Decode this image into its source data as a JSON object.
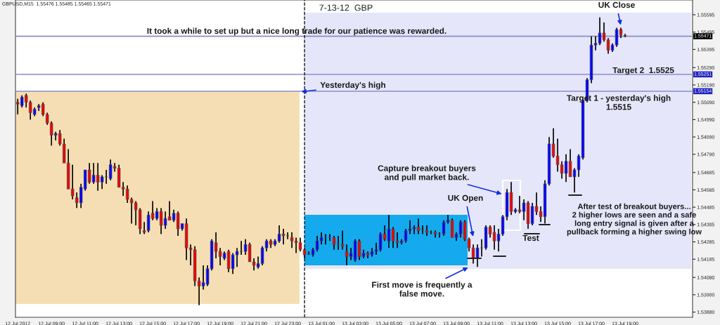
{
  "chart_data": {
    "type": "candlestick",
    "title": "7-13-12  GBP",
    "x": [
      "2012-07-12T07:00",
      "2012-07-12T07:15",
      "2012-07-12T07:30",
      "2012-07-12T07:45",
      "2012-07-12T08:00",
      "2012-07-12T08:15",
      "2012-07-12T08:30",
      "2012-07-12T08:45",
      "2012-07-12T09:00",
      "2012-07-12T09:15",
      "2012-07-12T09:30",
      "2012-07-12T09:45",
      "2012-07-12T10:00",
      "2012-07-12T10:15",
      "2012-07-12T10:30",
      "2012-07-12T10:45",
      "2012-07-12T11:00",
      "2012-07-12T11:15",
      "2012-07-12T11:30",
      "2012-07-12T11:45",
      "2012-07-12T12:00",
      "2012-07-12T12:15",
      "2012-07-12T12:30",
      "2012-07-12T12:45",
      "2012-07-12T13:00",
      "2012-07-12T13:15",
      "2012-07-12T13:30",
      "2012-07-12T13:45",
      "2012-07-12T14:00",
      "2012-07-12T14:15",
      "2012-07-12T14:30",
      "2012-07-12T14:45",
      "2012-07-12T15:00",
      "2012-07-12T15:15",
      "2012-07-12T15:30",
      "2012-07-12T15:45",
      "2012-07-12T16:00",
      "2012-07-12T16:15",
      "2012-07-12T16:30",
      "2012-07-12T16:45",
      "2012-07-12T17:00",
      "2012-07-12T17:15",
      "2012-07-12T17:30",
      "2012-07-12T17:45",
      "2012-07-12T18:00",
      "2012-07-12T18:15",
      "2012-07-12T18:30",
      "2012-07-12T18:45",
      "2012-07-12T19:00",
      "2012-07-12T19:15",
      "2012-07-12T19:30",
      "2012-07-12T19:45",
      "2012-07-12T20:00",
      "2012-07-12T20:15",
      "2012-07-12T20:30",
      "2012-07-12T20:45",
      "2012-07-12T21:00",
      "2012-07-12T21:15",
      "2012-07-12T21:30",
      "2012-07-12T21:45",
      "2012-07-12T22:00",
      "2012-07-12T22:15",
      "2012-07-12T22:30",
      "2012-07-12T22:45",
      "2012-07-12T23:00",
      "2012-07-12T23:15",
      "2012-07-12T23:30",
      "2012-07-12T23:45",
      "2012-07-13T00:00",
      "2012-07-13T00:15",
      "2012-07-13T00:30",
      "2012-07-13T00:45",
      "2012-07-13T01:00",
      "2012-07-13T01:15",
      "2012-07-13T01:30",
      "2012-07-13T01:45",
      "2012-07-13T02:00",
      "2012-07-13T02:15",
      "2012-07-13T02:30",
      "2012-07-13T02:45",
      "2012-07-13T03:00",
      "2012-07-13T03:15",
      "2012-07-13T03:30",
      "2012-07-13T03:45",
      "2012-07-13T04:00",
      "2012-07-13T04:15",
      "2012-07-13T04:30",
      "2012-07-13T04:45",
      "2012-07-13T05:00",
      "2012-07-13T05:15",
      "2012-07-13T05:30",
      "2012-07-13T05:45",
      "2012-07-13T06:00",
      "2012-07-13T06:15",
      "2012-07-13T06:30",
      "2012-07-13T06:45",
      "2012-07-13T07:00",
      "2012-07-13T07:15",
      "2012-07-13T07:30",
      "2012-07-13T07:45",
      "2012-07-13T08:00",
      "2012-07-13T08:15",
      "2012-07-13T08:30",
      "2012-07-13T08:45",
      "2012-07-13T09:00",
      "2012-07-13T09:15",
      "2012-07-13T09:30",
      "2012-07-13T09:45",
      "2012-07-13T10:00",
      "2012-07-13T10:15",
      "2012-07-13T10:30",
      "2012-07-13T10:45",
      "2012-07-13T11:00",
      "2012-07-13T11:15",
      "2012-07-13T11:30",
      "2012-07-13T11:45",
      "2012-07-13T12:00",
      "2012-07-13T12:15",
      "2012-07-13T12:30",
      "2012-07-13T12:45",
      "2012-07-13T13:00",
      "2012-07-13T13:15",
      "2012-07-13T13:30",
      "2012-07-13T13:45",
      "2012-07-13T14:00",
      "2012-07-13T14:15",
      "2012-07-13T14:30",
      "2012-07-13T14:45",
      "2012-07-13T15:00",
      "2012-07-13T15:15",
      "2012-07-13T15:30",
      "2012-07-13T15:45",
      "2012-07-13T16:00",
      "2012-07-13T16:15",
      "2012-07-13T16:30",
      "2012-07-13T16:45",
      "2012-07-13T17:00",
      "2012-07-13T17:15",
      "2012-07-13T17:30",
      "2012-07-13T17:45",
      "2012-07-13T18:00",
      "2012-07-13T18:15",
      "2012-07-13T18:30",
      "2012-07-13T18:45",
      "2012-07-13T19:00"
    ],
    "ohlc": [
      [
        1.5509,
        1.5511,
        1.5502,
        1.5508
      ],
      [
        1.5507,
        1.5513,
        1.5506,
        1.5512
      ],
      [
        1.5513,
        1.5514,
        1.5506,
        1.5509
      ],
      [
        1.5509,
        1.551,
        1.5499,
        1.5503
      ],
      [
        1.5502,
        1.5506,
        1.5501,
        1.5505
      ],
      [
        1.5506,
        1.5508,
        1.5504,
        1.5507
      ],
      [
        1.5508,
        1.5509,
        1.5501,
        1.5502
      ],
      [
        1.5502,
        1.5503,
        1.5496,
        1.5497
      ],
      [
        1.5497,
        1.5498,
        1.5484,
        1.549
      ],
      [
        1.549,
        1.5492,
        1.5487,
        1.5491
      ],
      [
        1.5491,
        1.5493,
        1.5484,
        1.5485
      ],
      [
        1.5485,
        1.5488,
        1.5474,
        1.5474
      ],
      [
        1.5474,
        1.5482,
        1.5459,
        1.5459
      ],
      [
        1.5459,
        1.5473,
        1.5453,
        1.5455
      ],
      [
        1.5454,
        1.5457,
        1.5448,
        1.5451
      ],
      [
        1.5451,
        1.5462,
        1.5448,
        1.546
      ],
      [
        1.5459,
        1.547,
        1.5458,
        1.547
      ],
      [
        1.547,
        1.5474,
        1.5462,
        1.5463
      ],
      [
        1.5463,
        1.5474,
        1.5462,
        1.5467
      ],
      [
        1.5467,
        1.5474,
        1.5458,
        1.5463
      ],
      [
        1.5463,
        1.5467,
        1.5459,
        1.5466
      ],
      [
        1.5466,
        1.547,
        1.5462,
        1.5466
      ],
      [
        1.5465,
        1.5476,
        1.5464,
        1.5473
      ],
      [
        1.5472,
        1.5474,
        1.5469,
        1.5471
      ],
      [
        1.5471,
        1.5473,
        1.546,
        1.546
      ],
      [
        1.546,
        1.5463,
        1.5455,
        1.5459
      ],
      [
        1.5459,
        1.5461,
        1.5451,
        1.5453
      ],
      [
        1.5453,
        1.5454,
        1.5439,
        1.5451
      ],
      [
        1.5451,
        1.5452,
        1.5438,
        1.5447
      ],
      [
        1.5447,
        1.5448,
        1.5433,
        1.5436
      ],
      [
        1.5435,
        1.544,
        1.5433,
        1.5434
      ],
      [
        1.5435,
        1.5446,
        1.5434,
        1.5444
      ],
      [
        1.5445,
        1.5452,
        1.5441,
        1.5442
      ],
      [
        1.5442,
        1.5448,
        1.5441,
        1.5446
      ],
      [
        1.5446,
        1.5448,
        1.5433,
        1.5438
      ],
      [
        1.5438,
        1.5446,
        1.5436,
        1.5442
      ],
      [
        1.5443,
        1.5452,
        1.5441,
        1.5441
      ],
      [
        1.5441,
        1.5447,
        1.544,
        1.5445
      ],
      [
        1.5445,
        1.5446,
        1.5432,
        1.5436
      ],
      [
        1.5436,
        1.5439,
        1.5435,
        1.5439
      ],
      [
        1.5439,
        1.5442,
        1.5418,
        1.5425
      ],
      [
        1.5425,
        1.5427,
        1.5415,
        1.5424
      ],
      [
        1.5424,
        1.5426,
        1.5403,
        1.5406
      ],
      [
        1.5406,
        1.5408,
        1.5392,
        1.5403
      ],
      [
        1.5403,
        1.5415,
        1.5401,
        1.5405
      ],
      [
        1.5404,
        1.5415,
        1.5403,
        1.5413
      ],
      [
        1.5413,
        1.543,
        1.5412,
        1.5429
      ],
      [
        1.5428,
        1.5434,
        1.5419,
        1.5423
      ],
      [
        1.5423,
        1.5425,
        1.5415,
        1.542
      ],
      [
        1.5419,
        1.5423,
        1.5418,
        1.5422
      ],
      [
        1.5423,
        1.5424,
        1.5411,
        1.5413
      ],
      [
        1.5413,
        1.5422,
        1.541,
        1.5421
      ],
      [
        1.5421,
        1.5425,
        1.5414,
        1.5423
      ],
      [
        1.5423,
        1.5429,
        1.5421,
        1.5423
      ],
      [
        1.5423,
        1.543,
        1.5421,
        1.5427
      ],
      [
        1.5427,
        1.5428,
        1.5417,
        1.5417
      ],
      [
        1.5417,
        1.5419,
        1.5412,
        1.5415
      ],
      [
        1.5414,
        1.542,
        1.5413,
        1.5416
      ],
      [
        1.5416,
        1.5426,
        1.5415,
        1.5425
      ],
      [
        1.5425,
        1.543,
        1.5423,
        1.5429
      ],
      [
        1.5429,
        1.543,
        1.5425,
        1.5427
      ],
      [
        1.5427,
        1.543,
        1.5426,
        1.5429
      ],
      [
        1.5429,
        1.5438,
        1.5428,
        1.5433
      ],
      [
        1.5433,
        1.5436,
        1.5427,
        1.5432
      ],
      [
        1.5432,
        1.5434,
        1.543,
        1.5432
      ],
      [
        1.5431,
        1.5434,
        1.5425,
        1.5429
      ],
      [
        1.5429,
        1.5431,
        1.5422,
        1.5428
      ],
      [
        1.5428,
        1.5431,
        1.5423,
        1.5424
      ],
      [
        1.5424,
        1.5425,
        1.5419,
        1.5421
      ],
      [
        1.5422,
        1.5423,
        1.5421,
        1.5422
      ],
      [
        1.5421,
        1.5425,
        1.542,
        1.5424
      ],
      [
        1.5424,
        1.5432,
        1.5423,
        1.5429
      ],
      [
        1.5429,
        1.5434,
        1.5427,
        1.5431
      ],
      [
        1.5431,
        1.5433,
        1.5427,
        1.5431
      ],
      [
        1.5431,
        1.5433,
        1.5429,
        1.5431
      ],
      [
        1.5431,
        1.5432,
        1.5424,
        1.5427
      ],
      [
        1.5427,
        1.5432,
        1.5424,
        1.5427
      ],
      [
        1.5427,
        1.5435,
        1.5424,
        1.5426
      ],
      [
        1.5423,
        1.5427,
        1.5415,
        1.542
      ],
      [
        1.542,
        1.5425,
        1.5418,
        1.5422
      ],
      [
        1.5418,
        1.543,
        1.5417,
        1.5429
      ],
      [
        1.5429,
        1.543,
        1.5418,
        1.542
      ],
      [
        1.542,
        1.5424,
        1.5419,
        1.5422
      ],
      [
        1.5422,
        1.5423,
        1.5419,
        1.5421
      ],
      [
        1.5421,
        1.5425,
        1.542,
        1.5423
      ],
      [
        1.5423,
        1.5428,
        1.5421,
        1.5424
      ],
      [
        1.5424,
        1.5434,
        1.5423,
        1.5433
      ],
      [
        1.5433,
        1.5438,
        1.5429,
        1.543
      ],
      [
        1.5429,
        1.5444,
        1.5425,
        1.5436
      ],
      [
        1.5436,
        1.5437,
        1.5425,
        1.5429
      ],
      [
        1.5429,
        1.5434,
        1.5425,
        1.5428
      ],
      [
        1.5428,
        1.543,
        1.5427,
        1.5429
      ],
      [
        1.5429,
        1.5436,
        1.5428,
        1.5435
      ],
      [
        1.5435,
        1.5441,
        1.5433,
        1.5436
      ],
      [
        1.5436,
        1.5438,
        1.5433,
        1.5437
      ],
      [
        1.5437,
        1.5442,
        1.5433,
        1.5435
      ],
      [
        1.5435,
        1.5438,
        1.5433,
        1.5435
      ],
      [
        1.5435,
        1.5438,
        1.5432,
        1.5434
      ],
      [
        1.5434,
        1.5435,
        1.5433,
        1.5434
      ],
      [
        1.5434,
        1.5435,
        1.5431,
        1.5433
      ],
      [
        1.5433,
        1.5434,
        1.5431,
        1.5433
      ],
      [
        1.5433,
        1.5441,
        1.5432,
        1.544
      ],
      [
        1.544,
        1.5444,
        1.5439,
        1.5441
      ],
      [
        1.5441,
        1.5442,
        1.5431,
        1.5431
      ],
      [
        1.5431,
        1.5434,
        1.5429,
        1.5433
      ],
      [
        1.5433,
        1.5441,
        1.5431,
        1.544
      ],
      [
        1.544,
        1.5441,
        1.5429,
        1.543
      ],
      [
        1.543,
        1.5431,
        1.5423,
        1.5425
      ],
      [
        1.5425,
        1.5427,
        1.5416,
        1.5419
      ],
      [
        1.5419,
        1.5427,
        1.5414,
        1.5425
      ],
      [
        1.5425,
        1.543,
        1.542,
        1.5425
      ],
      [
        1.5425,
        1.5438,
        1.5424,
        1.5437
      ],
      [
        1.5437,
        1.5438,
        1.5431,
        1.5433
      ],
      [
        1.5434,
        1.5438,
        1.5424,
        1.5429
      ],
      [
        1.5429,
        1.5436,
        1.5423,
        1.5433
      ],
      [
        1.5433,
        1.5444,
        1.5432,
        1.5443
      ],
      [
        1.5443,
        1.5459,
        1.5441,
        1.5457
      ],
      [
        1.5457,
        1.5463,
        1.5444,
        1.5446
      ],
      [
        1.5446,
        1.5448,
        1.5445,
        1.5447
      ],
      [
        1.5447,
        1.5455,
        1.5445,
        1.5446
      ],
      [
        1.5446,
        1.5453,
        1.5441,
        1.5451
      ],
      [
        1.5451,
        1.5452,
        1.5436,
        1.5439
      ],
      [
        1.5439,
        1.5451,
        1.5438,
        1.5449
      ],
      [
        1.5449,
        1.5457,
        1.5444,
        1.5446
      ],
      [
        1.5446,
        1.5449,
        1.544,
        1.5443
      ],
      [
        1.5443,
        1.5464,
        1.5439,
        1.5462
      ],
      [
        1.5462,
        1.5489,
        1.5461,
        1.5485
      ],
      [
        1.5485,
        1.5494,
        1.5477,
        1.5478
      ],
      [
        1.5478,
        1.5488,
        1.5469,
        1.5473
      ],
      [
        1.5473,
        1.5475,
        1.5465,
        1.5468
      ],
      [
        1.5468,
        1.5479,
        1.5463,
        1.5475
      ],
      [
        1.5475,
        1.5482,
        1.5466,
        1.5466
      ],
      [
        1.5466,
        1.5471,
        1.5457,
        1.547
      ],
      [
        1.547,
        1.5479,
        1.5466,
        1.5478
      ],
      [
        1.5477,
        1.5511,
        1.5476,
        1.551
      ],
      [
        1.551,
        1.5523,
        1.5509,
        1.5522
      ],
      [
        1.5522,
        1.5547,
        1.552,
        1.5542
      ],
      [
        1.5542,
        1.5547,
        1.5539,
        1.5543
      ],
      [
        1.5543,
        1.5558,
        1.5542,
        1.5549
      ],
      [
        1.5549,
        1.5555,
        1.5544,
        1.5545
      ],
      [
        1.5545,
        1.5546,
        1.5537,
        1.5539
      ],
      [
        1.5539,
        1.5543,
        1.5538,
        1.5542
      ],
      [
        1.5542,
        1.5552,
        1.5541,
        1.5551
      ],
      [
        1.5551,
        1.5552,
        1.5546,
        1.5548
      ],
      [
        1.55476,
        1.55485,
        1.55465,
        1.55471
      ]
    ],
    "xlim": [
      "2012-07-12T06:52",
      "2012-07-13T23:00"
    ],
    "xticks": [
      {
        "value": "2012-07-12T07:00",
        "label": "12 Jul 2012"
      },
      {
        "value": "2012-07-12T09:00",
        "label": "12 Jul 09:00"
      },
      {
        "value": "2012-07-12T11:00",
        "label": "12 Jul 11:00"
      },
      {
        "value": "2012-07-12T13:00",
        "label": "12 Jul 13:00"
      },
      {
        "value": "2012-07-12T15:00",
        "label": "12 Jul 15:00"
      },
      {
        "value": "2012-07-12T17:00",
        "label": "12 Jul 17:00"
      },
      {
        "value": "2012-07-12T19:00",
        "label": "12 Jul 19:00"
      },
      {
        "value": "2012-07-12T21:00",
        "label": "12 Jul 21:00"
      },
      {
        "value": "2012-07-12T23:00",
        "label": "12 Jul 23:00"
      },
      {
        "value": "2012-07-13T01:00",
        "label": "13 Jul 01:00"
      },
      {
        "value": "2012-07-13T03:00",
        "label": "13 Jul 03:00"
      },
      {
        "value": "2012-07-13T05:00",
        "label": "13 Jul 05:00"
      },
      {
        "value": "2012-07-13T07:00",
        "label": "13 Jul 07:00"
      },
      {
        "value": "2012-07-13T09:00",
        "label": "13 Jul 09:00"
      },
      {
        "value": "2012-07-13T11:00",
        "label": "13 Jul 11:00"
      },
      {
        "value": "2012-07-13T13:00",
        "label": "13 Jul 13:00"
      },
      {
        "value": "2012-07-13T15:00",
        "label": "13 Jul 15:00"
      },
      {
        "value": "2012-07-13T17:00",
        "label": "13 Jul 17:00"
      },
      {
        "value": "2012-07-13T19:00",
        "label": "13 Jul 19:00"
      }
    ],
    "ylim": [
      1.5385,
      1.5568
    ],
    "yticks": [
      {
        "value": 1.55595,
        "label": "1.55595"
      },
      {
        "value": 1.55495,
        "label": "1.55495"
      },
      {
        "value": 1.55395,
        "label": "1.55395"
      },
      {
        "value": 1.5529,
        "label": "1.55290"
      },
      {
        "value": 1.5519,
        "label": "1.55190"
      },
      {
        "value": 1.5509,
        "label": "1.55090"
      },
      {
        "value": 1.5499,
        "label": "1.54990"
      },
      {
        "value": 1.5489,
        "label": "1.54890"
      },
      {
        "value": 1.5479,
        "label": "1.54790"
      },
      {
        "value": 1.54685,
        "label": "1.54685"
      },
      {
        "value": 1.54585,
        "label": "1.54585"
      },
      {
        "value": 1.54485,
        "label": "1.54485"
      },
      {
        "value": 1.54385,
        "label": "1.54385"
      },
      {
        "value": 1.54285,
        "label": "1.54285"
      },
      {
        "value": 1.54185,
        "label": "1.54185"
      },
      {
        "value": 1.5408,
        "label": "1.54080"
      },
      {
        "value": 1.5398,
        "label": "1.53980"
      },
      {
        "value": 1.5388,
        "label": "1.53880"
      }
    ],
    "bands": [
      {
        "axis": "x",
        "from": "2012-07-12T06:52",
        "to": "2012-07-12T23:42",
        "color": "#f5deb3"
      },
      {
        "axis": "x",
        "from": "2012-07-13T00:00",
        "to": "2012-07-13T22:55",
        "color": "#e6e6fa"
      },
      {
        "axis": "x",
        "from": "2012-07-13T00:00",
        "to": "2012-07-13T09:40",
        "color": "#15aaee"
      }
    ],
    "ref_lines": [
      {
        "axis": "y",
        "value": 1.55471,
        "label": "1.55471",
        "color": "#8c8cc8"
      },
      {
        "axis": "y",
        "value": 1.55251,
        "label": "1.55251",
        "color": "#8c8cc8"
      },
      {
        "axis": "y",
        "value": 1.55154,
        "label": "1.55154",
        "color": "#8c8cc8"
      },
      {
        "axis": "x",
        "value": "2012-07-13T00:00",
        "color": "#000000",
        "line_style": "dashed"
      }
    ],
    "annotations": [
      "It took a while to set up but a nice long trade for our patience was rewarded.",
      {
        "text": "Yesterday's high",
        "x": "2012-07-12T23:45",
        "y": 1.5515
      },
      "Target 2  1.5525",
      "Target 1 - yesterday's high\n1.5515",
      {
        "text": "Capture breakout buyers\nand pull market back.",
        "x": "2012-07-13T11:45",
        "y": 1.5456
      },
      {
        "text": "UK Open",
        "x": "2012-07-13T10:00",
        "y": 1.5431
      },
      "Test",
      {
        "text": "First move is frequently a\nfalse move.",
        "x": "2012-07-13T09:45",
        "y": 1.5414
      },
      "After test of breakout buyers...\n2 higher lows are seen and a safe\nlong entry signal is given after a\npullback forming a higher swing low",
      {
        "text": "UK Close",
        "x": "2012-07-13T18:45",
        "y": 1.5553
      },
      "GBPUSD,M15  1.55476 1.55485 1.55465 1.55471"
    ]
  }
}
